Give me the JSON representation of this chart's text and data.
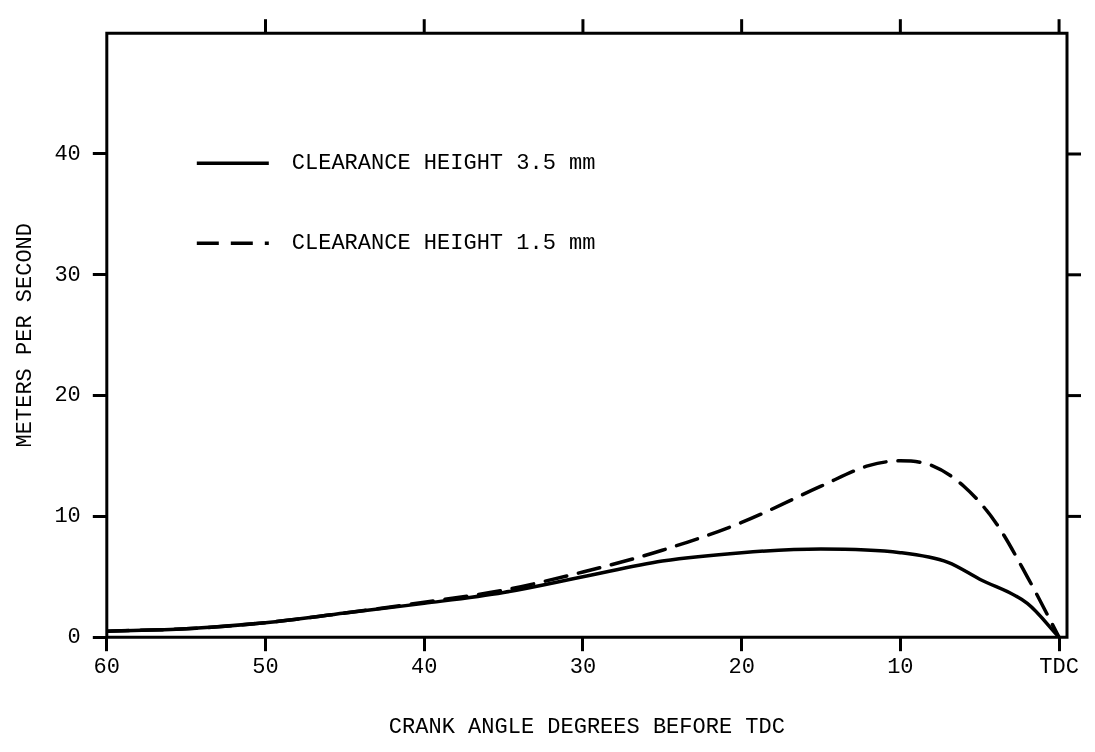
{
  "chart_data": {
    "type": "line",
    "xlabel": "CRANK ANGLE DEGREES BEFORE TDC",
    "ylabel": "METERS PER SECOND",
    "xlim": [
      60,
      -0.5
    ],
    "xticks": [
      60,
      50,
      40,
      30,
      20,
      10,
      {
        "value": 0,
        "label": "TDC"
      }
    ],
    "ylim": [
      0,
      50
    ],
    "yticks": [
      0,
      10,
      20,
      30,
      40
    ],
    "grid": false,
    "legend": "top left",
    "marker": "none",
    "series": [
      {
        "name": "CLEARANCE HEIGHT 3.5 mm",
        "color": "#000000",
        "line_style": "solid",
        "x": [
          60,
          55,
          50,
          45,
          40,
          35,
          30,
          25,
          20,
          15,
          10,
          7,
          5,
          2,
          0
        ],
        "values": [
          0.5,
          0.7,
          1.2,
          2,
          2.8,
          3.7,
          5,
          6.3,
          7,
          7.3,
          7,
          6.2,
          4.8,
          2.8,
          0
        ]
      },
      {
        "name": "CLEARANCE HEIGHT 1.5 mm",
        "color": "#000000",
        "line_style": "dashed",
        "x": [
          60,
          55,
          50,
          45,
          40,
          35,
          30,
          25,
          20,
          15,
          12,
          10,
          8,
          6,
          4,
          2,
          0
        ],
        "values": [
          0.5,
          0.7,
          1.2,
          2,
          2.9,
          3.9,
          5.4,
          7.2,
          9.5,
          12.5,
          14.2,
          14.6,
          14.2,
          12.5,
          9.5,
          5,
          0
        ]
      }
    ]
  }
}
